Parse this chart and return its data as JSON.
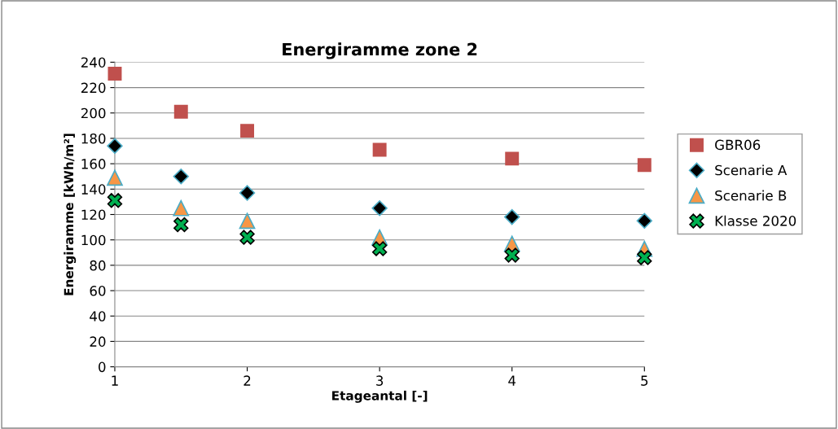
{
  "chart_data": {
    "type": "scatter",
    "title": "Energiramme zone 2",
    "xlabel": "Etageantal [-]",
    "ylabel": "Energiramme [kWh/m²]",
    "x": [
      1,
      1.5,
      2,
      3,
      4,
      5
    ],
    "series": [
      {
        "name": "GBR06",
        "color": "#c0504d",
        "marker": "square",
        "values": [
          231,
          201,
          186,
          171,
          164,
          159
        ]
      },
      {
        "name": "Scenarie A",
        "color": "#000000",
        "marker": "diamond",
        "values": [
          174,
          150,
          137,
          125,
          118,
          115
        ]
      },
      {
        "name": "Scenarie B",
        "color": "#f79646",
        "marker": "triangle",
        "values": [
          149,
          125,
          115,
          102,
          97,
          93
        ]
      },
      {
        "name": "Klasse 2020",
        "color": "#00b050",
        "marker": "cross",
        "values": [
          131,
          112,
          102,
          93,
          88,
          86
        ]
      }
    ],
    "xlim": [
      1,
      5
    ],
    "xticks": [
      1,
      2,
      3,
      4,
      5
    ],
    "ylim": [
      0,
      240
    ],
    "yticks": [
      0,
      20,
      40,
      60,
      80,
      100,
      120,
      140,
      160,
      180,
      200,
      220,
      240
    ],
    "grid": "y",
    "legend": "right"
  }
}
